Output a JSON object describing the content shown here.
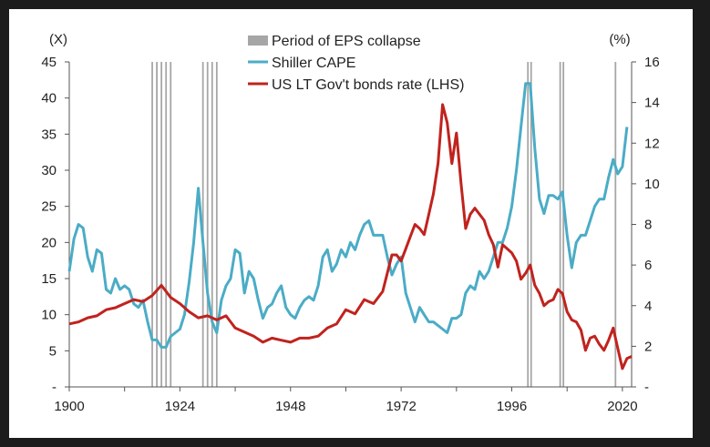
{
  "chart_data": {
    "type": "line",
    "title": "",
    "left_axis": {
      "unit_label": "(X)",
      "ticks": [
        "45",
        "40",
        "35",
        "30",
        "25",
        "20",
        "15",
        "10",
        "5",
        "-"
      ],
      "ylim": [
        0,
        45
      ]
    },
    "right_axis": {
      "unit_label": "(%)",
      "ticks": [
        "16",
        "14",
        "12",
        "10",
        "8",
        "6",
        "4",
        "2",
        "-"
      ],
      "ylim": [
        0,
        16
      ]
    },
    "x_axis": {
      "ticks": [
        "1900",
        "1924",
        "1948",
        "1972",
        "1996",
        "2020"
      ],
      "xlim": [
        1900,
        2022
      ]
    },
    "legend": {
      "placement": "top-center",
      "items": [
        {
          "label": "Period of EPS collapse",
          "kind": "bar",
          "color": "#a6a6a6"
        },
        {
          "label": "Shiller CAPE",
          "kind": "line",
          "color": "#4bacc6"
        },
        {
          "label": "US LT Gov't bonds rate (LHS)",
          "kind": "line",
          "color": "#c0231e"
        }
      ]
    },
    "shaded_periods": [
      1918,
      1919,
      1920,
      1921,
      1922,
      1929,
      1930,
      1931,
      1932,
      1999.5,
      2000.2,
      2006.5,
      2007.2,
      2018.5
    ],
    "series": [
      {
        "name": "Shiller CAPE",
        "axis": "left",
        "color": "#4bacc6",
        "points": [
          [
            1900,
            16
          ],
          [
            1901,
            20.5
          ],
          [
            1902,
            22.5
          ],
          [
            1903,
            22
          ],
          [
            1904,
            18
          ],
          [
            1905,
            16
          ],
          [
            1906,
            19
          ],
          [
            1907,
            18.5
          ],
          [
            1908,
            13.5
          ],
          [
            1909,
            13
          ],
          [
            1910,
            15
          ],
          [
            1911,
            13.5
          ],
          [
            1912,
            14
          ],
          [
            1913,
            13.5
          ],
          [
            1914,
            11.5
          ],
          [
            1915,
            11
          ],
          [
            1916,
            12
          ],
          [
            1917,
            9
          ],
          [
            1918,
            6.5
          ],
          [
            1919,
            6.5
          ],
          [
            1920,
            5.5
          ],
          [
            1921,
            5.5
          ],
          [
            1922,
            7
          ],
          [
            1923,
            7.5
          ],
          [
            1924,
            8
          ],
          [
            1925,
            10
          ],
          [
            1926,
            14.5
          ],
          [
            1927,
            20
          ],
          [
            1928,
            27.5
          ],
          [
            1929,
            20
          ],
          [
            1930,
            13
          ],
          [
            1931,
            9
          ],
          [
            1932,
            7.5
          ],
          [
            1933,
            12
          ],
          [
            1934,
            14
          ],
          [
            1935,
            15
          ],
          [
            1936,
            19
          ],
          [
            1937,
            18.5
          ],
          [
            1938,
            13
          ],
          [
            1939,
            16
          ],
          [
            1940,
            15
          ],
          [
            1941,
            12
          ],
          [
            1942,
            9.5
          ],
          [
            1943,
            11
          ],
          [
            1944,
            11.5
          ],
          [
            1945,
            13
          ],
          [
            1946,
            14
          ],
          [
            1947,
            11
          ],
          [
            1948,
            10
          ],
          [
            1949,
            9.5
          ],
          [
            1950,
            11
          ],
          [
            1951,
            12
          ],
          [
            1952,
            12.5
          ],
          [
            1953,
            12
          ],
          [
            1954,
            14
          ],
          [
            1955,
            18
          ],
          [
            1956,
            19
          ],
          [
            1957,
            16
          ],
          [
            1958,
            17
          ],
          [
            1959,
            19
          ],
          [
            1960,
            18
          ],
          [
            1961,
            20
          ],
          [
            1962,
            19
          ],
          [
            1963,
            21
          ],
          [
            1964,
            22.5
          ],
          [
            1965,
            23
          ],
          [
            1966,
            21
          ],
          [
            1967,
            21
          ],
          [
            1968,
            21
          ],
          [
            1969,
            18
          ],
          [
            1970,
            15.5
          ],
          [
            1971,
            17
          ],
          [
            1972,
            18
          ],
          [
            1973,
            13
          ],
          [
            1974,
            11
          ],
          [
            1975,
            9
          ],
          [
            1976,
            11
          ],
          [
            1977,
            10
          ],
          [
            1978,
            9
          ],
          [
            1979,
            9
          ],
          [
            1980,
            8.5
          ],
          [
            1981,
            8
          ],
          [
            1982,
            7.5
          ],
          [
            1983,
            9.5
          ],
          [
            1984,
            9.5
          ],
          [
            1985,
            10
          ],
          [
            1986,
            13
          ],
          [
            1987,
            14
          ],
          [
            1988,
            13.5
          ],
          [
            1989,
            16
          ],
          [
            1990,
            15
          ],
          [
            1991,
            16
          ],
          [
            1992,
            18
          ],
          [
            1993,
            20
          ],
          [
            1994,
            20
          ],
          [
            1995,
            22
          ],
          [
            1996,
            25
          ],
          [
            1997,
            30
          ],
          [
            1998,
            36
          ],
          [
            1999,
            42
          ],
          [
            2000,
            42
          ],
          [
            2001,
            33
          ],
          [
            2002,
            26
          ],
          [
            2003,
            24
          ],
          [
            2004,
            26.5
          ],
          [
            2005,
            26.5
          ],
          [
            2006,
            26
          ],
          [
            2007,
            27
          ],
          [
            2008,
            21
          ],
          [
            2009,
            16.5
          ],
          [
            2010,
            20
          ],
          [
            2011,
            21
          ],
          [
            2012,
            21
          ],
          [
            2013,
            23
          ],
          [
            2014,
            25
          ],
          [
            2015,
            26
          ],
          [
            2016,
            26
          ],
          [
            2017,
            29
          ],
          [
            2018,
            31.5
          ],
          [
            2019,
            29.5
          ],
          [
            2020,
            30.5
          ],
          [
            2021,
            36
          ]
        ]
      },
      {
        "name": "US LT Gov't bonds rate (LHS)",
        "axis": "right",
        "color": "#c0231e",
        "points": [
          [
            1900,
            3.1
          ],
          [
            1902,
            3.2
          ],
          [
            1904,
            3.4
          ],
          [
            1906,
            3.5
          ],
          [
            1908,
            3.8
          ],
          [
            1910,
            3.9
          ],
          [
            1912,
            4.1
          ],
          [
            1914,
            4.3
          ],
          [
            1916,
            4.2
          ],
          [
            1918,
            4.5
          ],
          [
            1920,
            5
          ],
          [
            1922,
            4.4
          ],
          [
            1924,
            4.1
          ],
          [
            1926,
            3.7
          ],
          [
            1928,
            3.4
          ],
          [
            1930,
            3.5
          ],
          [
            1932,
            3.3
          ],
          [
            1934,
            3.5
          ],
          [
            1936,
            2.9
          ],
          [
            1938,
            2.7
          ],
          [
            1940,
            2.5
          ],
          [
            1942,
            2.2
          ],
          [
            1944,
            2.4
          ],
          [
            1946,
            2.3
          ],
          [
            1948,
            2.2
          ],
          [
            1950,
            2.4
          ],
          [
            1952,
            2.4
          ],
          [
            1954,
            2.5
          ],
          [
            1956,
            2.9
          ],
          [
            1958,
            3.1
          ],
          [
            1960,
            3.8
          ],
          [
            1962,
            3.6
          ],
          [
            1964,
            4.3
          ],
          [
            1966,
            4.1
          ],
          [
            1968,
            4.7
          ],
          [
            1970,
            6.5
          ],
          [
            1971,
            6.5
          ],
          [
            1972,
            6.2
          ],
          [
            1973,
            6.8
          ],
          [
            1974,
            7.4
          ],
          [
            1975,
            8
          ],
          [
            1976,
            7.8
          ],
          [
            1977,
            7.5
          ],
          [
            1978,
            8.5
          ],
          [
            1979,
            9.5
          ],
          [
            1980,
            11
          ],
          [
            1981,
            13.9
          ],
          [
            1982,
            13
          ],
          [
            1983,
            11
          ],
          [
            1984,
            12.5
          ],
          [
            1985,
            10
          ],
          [
            1986,
            7.8
          ],
          [
            1987,
            8.5
          ],
          [
            1988,
            8.8
          ],
          [
            1989,
            8.5
          ],
          [
            1990,
            8.2
          ],
          [
            1991,
            7.5
          ],
          [
            1992,
            7
          ],
          [
            1993,
            5.9
          ],
          [
            1994,
            7
          ],
          [
            1995,
            6.8
          ],
          [
            1996,
            6.6
          ],
          [
            1997,
            6.2
          ],
          [
            1998,
            5.3
          ],
          [
            1999,
            5.6
          ],
          [
            2000,
            6
          ],
          [
            2001,
            5
          ],
          [
            2002,
            4.6
          ],
          [
            2003,
            4
          ],
          [
            2004,
            4.2
          ],
          [
            2005,
            4.3
          ],
          [
            2006,
            4.8
          ],
          [
            2007,
            4.6
          ],
          [
            2008,
            3.7
          ],
          [
            2009,
            3.3
          ],
          [
            2010,
            3.2
          ],
          [
            2011,
            2.8
          ],
          [
            2012,
            1.8
          ],
          [
            2013,
            2.4
          ],
          [
            2014,
            2.5
          ],
          [
            2015,
            2.1
          ],
          [
            2016,
            1.8
          ],
          [
            2017,
            2.3
          ],
          [
            2018,
            2.9
          ],
          [
            2019,
            1.9
          ],
          [
            2020,
            0.9
          ],
          [
            2021,
            1.4
          ],
          [
            2022,
            1.5
          ]
        ]
      }
    ]
  }
}
